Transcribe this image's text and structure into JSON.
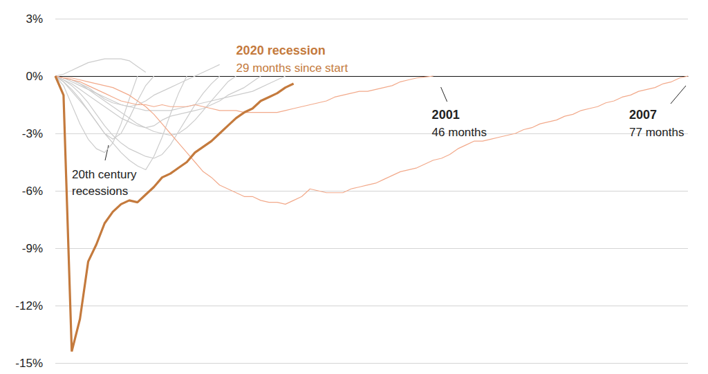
{
  "chart_data": {
    "type": "line",
    "xlim": [
      0,
      77
    ],
    "ylim": [
      -15,
      3
    ],
    "yticks": [
      {
        "value": -15,
        "label": "-15%"
      },
      {
        "value": -12,
        "label": "-12%"
      },
      {
        "value": -9,
        "label": "-9%"
      },
      {
        "value": -6,
        "label": "-6%"
      },
      {
        "value": -3,
        "label": "-3%"
      },
      {
        "value": 0,
        "label": "0%"
      },
      {
        "value": 3,
        "label": "3%"
      }
    ],
    "grid": true,
    "tick_labels": "y",
    "annotations": [
      {
        "text": "20th century recessions"
      }
    ],
    "series": [
      {
        "color": "#cccccc",
        "line_style": "solid",
        "x": [
          0,
          1,
          2,
          3,
          4,
          5,
          6,
          7,
          8,
          9,
          10,
          11
        ],
        "values": [
          0,
          0.1,
          0.3,
          0.5,
          0.7,
          0.8,
          0.9,
          0.9,
          0.9,
          0.8,
          0.5,
          0.2
        ]
      },
      {
        "color": "#cccccc",
        "line_style": "solid",
        "x": [
          0,
          1,
          2,
          3,
          4,
          5,
          6,
          7,
          8,
          9,
          10,
          11,
          12,
          13,
          14,
          15,
          16
        ],
        "values": [
          0,
          -0.3,
          -0.8,
          -1.3,
          -1.8,
          -2.4,
          -3.0,
          -3.5,
          -4.0,
          -4.4,
          -4.7,
          -4.9,
          -4.2,
          -3.2,
          -2.0,
          -0.9,
          0
        ]
      },
      {
        "color": "#cccccc",
        "line_style": "solid",
        "x": [
          0,
          1,
          2,
          3,
          4,
          5,
          6,
          7,
          8,
          9,
          10
        ],
        "values": [
          0,
          -0.5,
          -1.5,
          -2.5,
          -3.3,
          -3.8,
          -4.0,
          -3.5,
          -2.5,
          -1.2,
          0
        ]
      },
      {
        "color": "#cccccc",
        "line_style": "solid",
        "x": [
          0,
          1,
          2,
          3,
          4,
          5,
          6,
          7,
          8,
          9,
          10,
          11,
          12,
          13,
          14,
          15,
          16,
          17,
          18,
          19,
          20
        ],
        "values": [
          0,
          -0.2,
          -0.5,
          -0.9,
          -1.4,
          -2.0,
          -2.6,
          -3.1,
          -3.5,
          -3.8,
          -4.0,
          -4.2,
          -4.3,
          -4.1,
          -3.6,
          -2.9,
          -2.2,
          -1.5,
          -0.9,
          -0.4,
          0
        ]
      },
      {
        "color": "#cccccc",
        "line_style": "solid",
        "x": [
          0,
          1,
          2,
          3,
          4,
          5,
          6,
          7,
          8,
          9,
          10,
          11,
          12,
          13,
          14,
          15,
          16,
          17,
          18,
          19,
          20,
          21,
          22
        ],
        "values": [
          0,
          -0.1,
          -0.2,
          -0.4,
          -0.7,
          -1.0,
          -1.3,
          -1.6,
          -1.9,
          -2.2,
          -2.5,
          -2.7,
          -2.9,
          -3.0,
          -3.1,
          -3.0,
          -2.7,
          -2.3,
          -1.8,
          -1.3,
          -0.8,
          -0.3,
          0
        ]
      },
      {
        "color": "#cccccc",
        "line_style": "solid",
        "x": [
          0,
          1,
          2,
          3,
          4,
          5,
          6,
          7,
          8,
          9,
          10,
          11,
          12,
          13,
          14,
          15,
          16,
          17,
          18,
          19,
          20,
          21,
          22,
          23,
          24,
          25,
          26,
          27,
          28
        ],
        "values": [
          0,
          -0.1,
          -0.3,
          -0.5,
          -0.7,
          -0.9,
          -1.1,
          -1.3,
          -1.5,
          -1.6,
          -1.7,
          -1.8,
          -1.8,
          -1.8,
          -1.8,
          -1.7,
          -1.6,
          -1.5,
          -1.4,
          -1.3,
          -1.2,
          -1.1,
          -1.0,
          -0.9,
          -0.8,
          -0.6,
          -0.4,
          -0.2,
          0
        ]
      },
      {
        "color": "#cccccc",
        "line_style": "solid",
        "x": [
          0,
          1,
          2,
          3,
          4,
          5,
          6,
          7,
          8,
          9,
          10,
          11,
          12,
          13,
          14,
          15,
          16,
          17,
          18,
          19,
          20,
          21,
          22,
          23,
          24,
          25
        ],
        "values": [
          0,
          -0.2,
          -0.4,
          -0.7,
          -1.0,
          -1.3,
          -1.6,
          -1.9,
          -2.2,
          -2.4,
          -2.6,
          -2.7,
          -2.6,
          -2.3,
          -2.1,
          -2.0,
          -1.9,
          -1.8,
          -1.7,
          -1.5,
          -1.3,
          -1.0,
          -0.8,
          -0.6,
          -0.3,
          0
        ]
      },
      {
        "color": "#cccccc",
        "line_style": "solid",
        "x": [
          0,
          1,
          2,
          3,
          4,
          5,
          6,
          7,
          8,
          9,
          10,
          11,
          12
        ],
        "values": [
          0,
          -0.3,
          -0.7,
          -1.2,
          -1.8,
          -2.4,
          -3.0,
          -3.3,
          -3.0,
          -2.2,
          -1.3,
          -0.5,
          0
        ]
      },
      {
        "color": "#cccccc",
        "line_style": "solid",
        "x": [
          0,
          1,
          2,
          3,
          4,
          5,
          6,
          7,
          8,
          9,
          10,
          11,
          12,
          13,
          14,
          15,
          16,
          17,
          18,
          19,
          20
        ],
        "values": [
          0,
          -0.1,
          -0.2,
          -0.4,
          -0.6,
          -0.9,
          -1.2,
          -1.4,
          -1.5,
          -1.6,
          -1.5,
          -1.3,
          -1.0,
          -0.8,
          -0.6,
          -0.4,
          -0.2,
          0,
          0.2,
          0.4,
          0.6
        ]
      },
      {
        "name": "2001",
        "annotation": "46 months",
        "color": "#f2a98a",
        "line_style": "solid",
        "x": [
          0,
          1,
          2,
          3,
          4,
          5,
          6,
          7,
          8,
          9,
          10,
          11,
          12,
          13,
          14,
          15,
          16,
          17,
          18,
          19,
          20,
          21,
          22,
          23,
          24,
          25,
          26,
          27,
          28,
          29,
          30,
          31,
          32,
          33,
          34,
          35,
          36,
          37,
          38,
          39,
          40,
          41,
          42,
          43,
          44,
          45,
          46
        ],
        "values": [
          0,
          -0.1,
          -0.2,
          -0.3,
          -0.5,
          -0.7,
          -0.9,
          -1.1,
          -1.3,
          -1.4,
          -1.5,
          -1.5,
          -1.6,
          -1.5,
          -1.6,
          -1.6,
          -1.6,
          -1.5,
          -1.6,
          -1.7,
          -1.8,
          -1.8,
          -1.8,
          -1.9,
          -1.9,
          -1.9,
          -1.9,
          -1.9,
          -1.8,
          -1.7,
          -1.6,
          -1.5,
          -1.4,
          -1.3,
          -1.1,
          -1.0,
          -0.9,
          -0.8,
          -0.8,
          -0.7,
          -0.6,
          -0.5,
          -0.3,
          -0.2,
          -0.1,
          -0.05,
          0
        ]
      },
      {
        "name": "2007",
        "annotation": "77 months",
        "color": "#f2a98a",
        "line_style": "solid",
        "x": [
          0,
          1,
          2,
          3,
          4,
          5,
          6,
          7,
          8,
          9,
          10,
          11,
          12,
          13,
          14,
          15,
          16,
          17,
          18,
          19,
          20,
          21,
          22,
          23,
          24,
          25,
          26,
          27,
          28,
          29,
          30,
          31,
          32,
          33,
          34,
          35,
          36,
          37,
          38,
          39,
          40,
          41,
          42,
          43,
          44,
          45,
          46,
          47,
          48,
          49,
          50,
          51,
          52,
          53,
          54,
          55,
          56,
          57,
          58,
          59,
          60,
          61,
          62,
          63,
          64,
          65,
          66,
          67,
          68,
          69,
          70,
          71,
          72,
          73,
          74,
          75,
          76,
          77
        ],
        "values": [
          0,
          -0.1,
          -0.1,
          -0.2,
          -0.3,
          -0.4,
          -0.5,
          -0.6,
          -0.8,
          -1.0,
          -1.3,
          -1.6,
          -2.0,
          -2.5,
          -3.0,
          -3.5,
          -4.0,
          -4.5,
          -5.0,
          -5.3,
          -5.7,
          -5.9,
          -6.1,
          -6.3,
          -6.3,
          -6.5,
          -6.6,
          -6.6,
          -6.7,
          -6.5,
          -6.3,
          -5.9,
          -6.0,
          -6.1,
          -6.1,
          -6.1,
          -5.9,
          -5.8,
          -5.7,
          -5.6,
          -5.4,
          -5.2,
          -5.0,
          -4.9,
          -4.8,
          -4.6,
          -4.4,
          -4.3,
          -4.1,
          -3.8,
          -3.6,
          -3.4,
          -3.4,
          -3.3,
          -3.2,
          -3.1,
          -3.0,
          -2.8,
          -2.7,
          -2.5,
          -2.4,
          -2.3,
          -2.1,
          -2.0,
          -1.8,
          -1.7,
          -1.6,
          -1.4,
          -1.3,
          -1.1,
          -1.0,
          -0.8,
          -0.7,
          -0.6,
          -0.4,
          -0.3,
          -0.1,
          0
        ]
      },
      {
        "name": "2020 recession",
        "annotation": "29 months since start",
        "color": "#c47a3d",
        "line_style": "thick",
        "x": [
          0,
          1,
          2,
          3,
          4,
          5,
          6,
          7,
          8,
          9,
          10,
          11,
          12,
          13,
          14,
          15,
          16,
          17,
          18,
          19,
          20,
          21,
          22,
          23,
          24,
          25,
          26,
          27,
          28,
          29
        ],
        "values": [
          0,
          -1.0,
          -14.4,
          -12.7,
          -9.7,
          -8.8,
          -7.7,
          -7.1,
          -6.7,
          -6.5,
          -6.6,
          -6.2,
          -5.8,
          -5.3,
          -5.1,
          -4.8,
          -4.5,
          -4.0,
          -3.7,
          -3.4,
          -3.0,
          -2.6,
          -2.2,
          -1.9,
          -1.7,
          -1.3,
          -1.1,
          -0.9,
          -0.6,
          -0.4
        ]
      }
    ]
  }
}
